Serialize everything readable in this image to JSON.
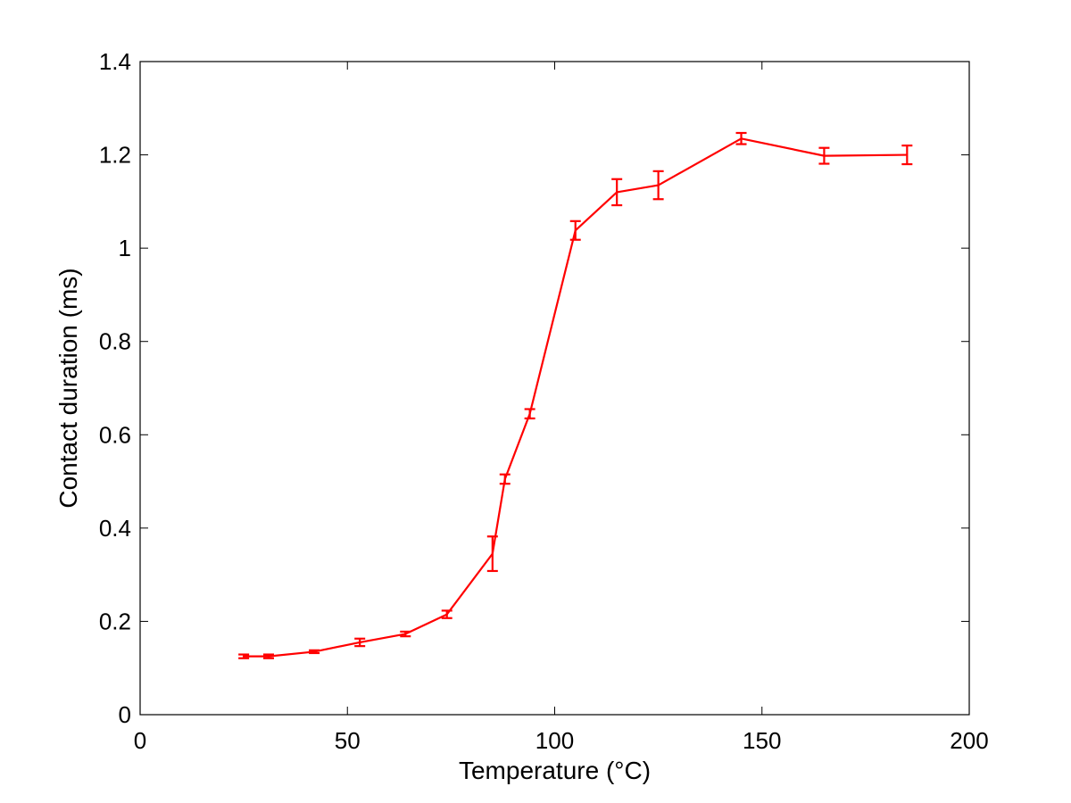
{
  "chart_data": {
    "type": "line",
    "title": "",
    "xlabel": "Temperature (°C)",
    "ylabel": "Contact duration (ms)",
    "xlim": [
      0,
      200
    ],
    "ylim": [
      0,
      1.4
    ],
    "x_ticks": [
      0,
      50,
      100,
      150,
      200
    ],
    "y_ticks": [
      0,
      0.2,
      0.4,
      0.6,
      0.8,
      1.0,
      1.2,
      1.4
    ],
    "x_tick_labels": [
      "0",
      "50",
      "100",
      "150",
      "200"
    ],
    "y_tick_labels": [
      "0",
      "0.2",
      "0.4",
      "0.6",
      "0.8",
      "1",
      "1.2",
      "1.4"
    ],
    "grid": false,
    "series": [
      {
        "color": "#ff0000",
        "x": [
          25,
          31,
          42,
          53,
          64,
          74,
          85,
          88,
          94,
          105,
          115,
          125,
          145,
          165,
          185
        ],
        "y": [
          0.125,
          0.125,
          0.135,
          0.155,
          0.173,
          0.215,
          0.345,
          0.505,
          0.645,
          1.038,
          1.12,
          1.135,
          1.235,
          1.198,
          1.2
        ],
        "err": [
          0.004,
          0.004,
          0.003,
          0.008,
          0.005,
          0.008,
          0.037,
          0.01,
          0.01,
          0.02,
          0.028,
          0.03,
          0.012,
          0.017,
          0.02
        ]
      }
    ]
  }
}
